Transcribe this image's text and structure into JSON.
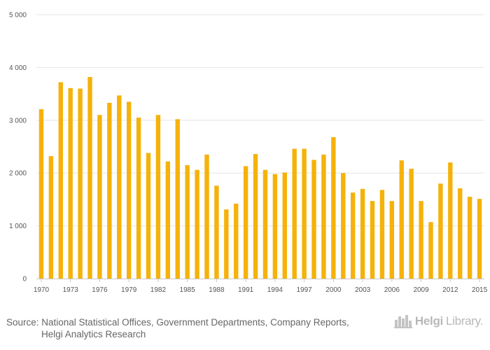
{
  "chart_data": {
    "type": "bar",
    "title": "",
    "xlabel": "",
    "ylabel": "",
    "ylim": [
      0,
      5000
    ],
    "yticks": [
      0,
      1000,
      2000,
      3000,
      4000,
      5000
    ],
    "ytick_labels": [
      "0",
      "1 000",
      "2 000",
      "3 000",
      "4 000",
      "5 000"
    ],
    "xtick_labels": [
      "1970",
      "1973",
      "1976",
      "1979",
      "1982",
      "1985",
      "1988",
      "1991",
      "1994",
      "1997",
      "2000",
      "2003",
      "2006",
      "2009",
      "2012",
      "2015"
    ],
    "color": "#f5b20a",
    "categories": [
      "1970",
      "1971",
      "1972",
      "1973",
      "1974",
      "1975",
      "1976",
      "1977",
      "1978",
      "1979",
      "1980",
      "1981",
      "1982",
      "1983",
      "1984",
      "1985",
      "1986",
      "1987",
      "1988",
      "1989",
      "1990",
      "1991",
      "1992",
      "1993",
      "1994",
      "1995",
      "1996",
      "1997",
      "1998",
      "1999",
      "2000",
      "2001",
      "2002",
      "2003",
      "2004",
      "2005",
      "2006",
      "2007",
      "2008",
      "2009",
      "2010",
      "2011",
      "2012",
      "2013",
      "2014",
      "2015"
    ],
    "values": [
      3210,
      2320,
      3720,
      3610,
      3600,
      3820,
      3100,
      3330,
      3470,
      3350,
      3050,
      2380,
      3100,
      2220,
      3020,
      2150,
      2060,
      2350,
      1760,
      1310,
      1420,
      2130,
      2360,
      2060,
      1980,
      2010,
      2460,
      2460,
      2250,
      2350,
      2680,
      2000,
      1630,
      1700,
      1470,
      1680,
      1470,
      2240,
      2080,
      1470,
      1070,
      1800,
      2200,
      1710,
      1550,
      1510
    ]
  },
  "footer": {
    "source_line1": "Source: National Statistical Offices, Government Departments, Company Reports,",
    "source_line2": "Helgi Analytics Research",
    "brand_part1": "Helgi",
    "brand_part2": "Library."
  }
}
